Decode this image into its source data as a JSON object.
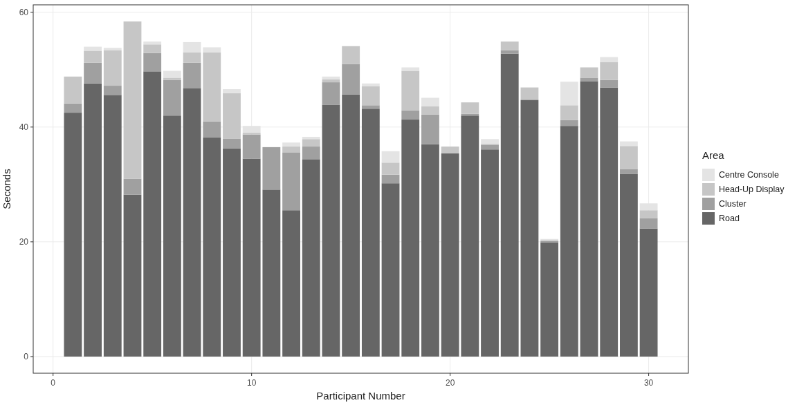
{
  "chart_data": {
    "type": "bar",
    "stacked": true,
    "xlabel": "Participant Number",
    "ylabel": "Seconds",
    "legend_title": "Area",
    "legend": "right",
    "grid": true,
    "x": [
      1,
      2,
      3,
      4,
      5,
      6,
      7,
      8,
      9,
      10,
      11,
      12,
      13,
      14,
      15,
      16,
      17,
      18,
      19,
      20,
      21,
      22,
      23,
      24,
      25,
      26,
      27,
      28,
      29,
      30
    ],
    "xlim": [
      -1,
      32
    ],
    "xticks": [
      0,
      10,
      20,
      30
    ],
    "ylim": [
      -2.9,
      61.3
    ],
    "yticks": [
      0,
      20,
      40,
      60
    ],
    "series": [
      {
        "name": "Road",
        "color": "#666666",
        "values": [
          42.5,
          47.6,
          45.6,
          28.2,
          49.7,
          42.0,
          46.8,
          38.2,
          36.3,
          34.5,
          29.1,
          25.5,
          34.4,
          43.9,
          45.7,
          43.2,
          30.2,
          41.3,
          37.0,
          35.4,
          42.0,
          36.1,
          52.8,
          44.7,
          19.9,
          40.2,
          48.0,
          46.9,
          31.8,
          22.3
        ]
      },
      {
        "name": "Cluster",
        "color": "#a0a0a0",
        "values": [
          1.6,
          3.6,
          1.6,
          2.8,
          3.2,
          6.2,
          4.4,
          2.8,
          1.7,
          4.2,
          7.4,
          10.1,
          2.2,
          3.9,
          5.3,
          0.6,
          1.5,
          1.6,
          5.2,
          0,
          0.3,
          0.8,
          0.6,
          0.1,
          0.3,
          1.0,
          0.6,
          1.3,
          0.9,
          1.8
        ]
      },
      {
        "name": "Head-Up Display",
        "color": "#c6c6c6",
        "values": [
          4.7,
          2.1,
          6.2,
          27.4,
          1.5,
          0.4,
          1.8,
          12.0,
          7.9,
          0.3,
          null,
          1.0,
          1.3,
          0.5,
          3.1,
          3.3,
          2.1,
          6.9,
          1.4,
          1.2,
          2.0,
          0.2,
          1.5,
          2.1,
          null,
          2.6,
          1.8,
          3.1,
          4.0,
          1.4
        ]
      },
      {
        "name": "Centre Console",
        "color": "#e4e4e4",
        "values": [
          0,
          0.7,
          0.4,
          0,
          0.5,
          1.2,
          1.8,
          0.9,
          0.7,
          1.2,
          0,
          0.7,
          0.4,
          0.5,
          null,
          0.5,
          2.0,
          0.6,
          1.5,
          0,
          0,
          0.8,
          0,
          0,
          0.3,
          4.1,
          0,
          0.9,
          0.8,
          1.2
        ]
      }
    ]
  }
}
